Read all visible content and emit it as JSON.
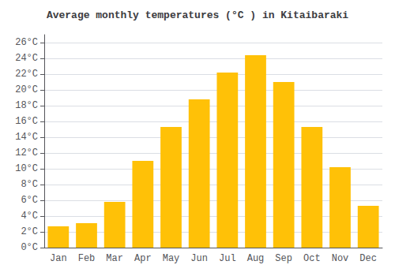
{
  "chart_data": {
    "type": "bar",
    "title": "Average monthly temperatures (°C ) in Kitaibaraki",
    "categories": [
      "Jan",
      "Feb",
      "Mar",
      "Apr",
      "May",
      "Jun",
      "Jul",
      "Aug",
      "Sep",
      "Oct",
      "Nov",
      "Dec"
    ],
    "values": [
      2.7,
      3.1,
      5.8,
      11.0,
      15.3,
      18.8,
      22.2,
      24.4,
      21.0,
      15.3,
      10.2,
      5.3
    ],
    "color": "#FFC107",
    "ylim": [
      0,
      27
    ],
    "yticks": [
      {
        "value": 0,
        "label": "0°C"
      },
      {
        "value": 2,
        "label": "2°C"
      },
      {
        "value": 4,
        "label": "4°C"
      },
      {
        "value": 6,
        "label": "6°C"
      },
      {
        "value": 8,
        "label": "8°C"
      },
      {
        "value": 10,
        "label": "10°C"
      },
      {
        "value": 12,
        "label": "12°C"
      },
      {
        "value": 14,
        "label": "14°C"
      },
      {
        "value": 16,
        "label": "16°C"
      },
      {
        "value": 18,
        "label": "18°C"
      },
      {
        "value": 20,
        "label": "20°C"
      },
      {
        "value": 22,
        "label": "22°C"
      },
      {
        "value": 24,
        "label": "24°C"
      },
      {
        "value": 26,
        "label": "26°C"
      }
    ],
    "grid": true
  }
}
